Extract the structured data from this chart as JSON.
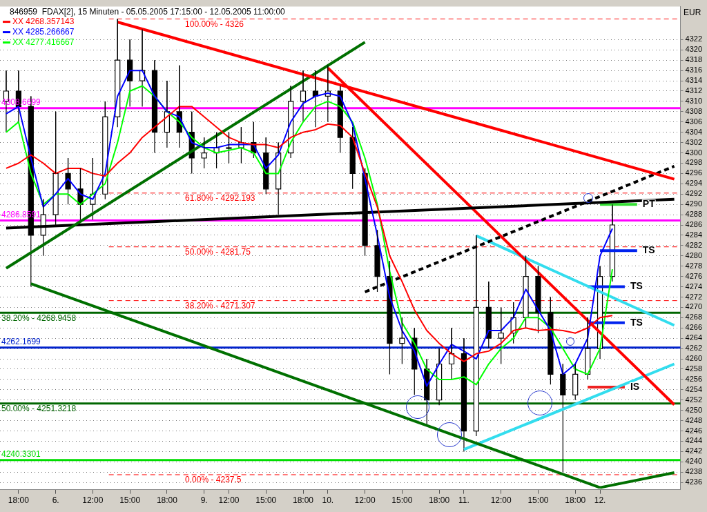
{
  "chart_data": {
    "type": "candlestick",
    "title": "846959  FDAX[2], 15 Minuten - 05.05.2005 17:15:00 - 12.05.2005 11:00:00",
    "ylabel": "EUR",
    "categories": [
      null,
      "18:00",
      null,
      null,
      "6.",
      null,
      null,
      "12:00",
      null,
      null,
      "15:00",
      null,
      null,
      "18:00",
      null,
      null,
      "9.",
      null,
      "12:00",
      null,
      null,
      "15:00",
      null,
      null,
      "18:00",
      null,
      "10.",
      null,
      null,
      "12:00",
      null,
      null,
      "15:00",
      null,
      null,
      "18:00",
      null,
      "11.",
      null,
      null,
      "12:00",
      null,
      null,
      "15:00",
      null,
      null,
      "18:00",
      null,
      "12.",
      null,
      null,
      null,
      null,
      null,
      null
    ],
    "ohlc": [
      [
        4310,
        4316,
        4304,
        4312
      ],
      [
        4312,
        4316,
        4306,
        4309
      ],
      [
        4309,
        4311,
        4274,
        4284
      ],
      [
        4284,
        4291,
        4280,
        4288
      ],
      [
        4288,
        4308,
        4286,
        4296
      ],
      [
        4296,
        4299,
        4290,
        4293
      ],
      [
        4293,
        4297,
        4287,
        4290
      ],
      [
        4290,
        4299,
        4287,
        4292
      ],
      [
        4292,
        4310,
        4291,
        4307
      ],
      [
        4307,
        4326,
        4305,
        4318
      ],
      [
        4318,
        4322,
        4309,
        4314
      ],
      [
        4314,
        4324,
        4309,
        4316
      ],
      [
        4316,
        4318,
        4300,
        4304
      ],
      [
        4304,
        4314,
        4301,
        4308
      ],
      [
        4308,
        4317,
        4301,
        4304
      ],
      [
        4304,
        4308,
        4296,
        4299
      ],
      [
        4299,
        4303,
        4297,
        4300
      ],
      [
        4300,
        4304,
        4297,
        4301
      ],
      [
        4301,
        4304,
        4298,
        4301
      ],
      [
        4301,
        4305,
        4298,
        4302
      ],
      [
        4302,
        4306,
        4299,
        4300
      ],
      [
        4300,
        4303,
        4292,
        4293
      ],
      [
        4293,
        4302,
        4288,
        4300
      ],
      [
        4300,
        4313,
        4299,
        4310
      ],
      [
        4310,
        4316,
        4306,
        4312
      ],
      [
        4312,
        4316,
        4305,
        4311
      ],
      [
        4311,
        4317,
        4306,
        4312
      ],
      [
        4312,
        4313,
        4300,
        4303
      ],
      [
        4303,
        4305,
        4293,
        4296
      ],
      [
        4296,
        4297,
        4280,
        4282
      ],
      [
        4282,
        4285,
        4273,
        4276
      ],
      [
        4276,
        4279,
        4257,
        4263
      ],
      [
        4263,
        4268,
        4259,
        4264
      ],
      [
        4264,
        4266,
        4253,
        4258
      ],
      [
        4258,
        4260,
        4247,
        4252
      ],
      [
        4252,
        4262,
        4251,
        4259
      ],
      [
        4259,
        4266,
        4256,
        4261
      ],
      [
        4261,
        4264,
        4242,
        4246
      ],
      [
        4246,
        4284,
        4245,
        4270
      ],
      [
        4270,
        4275,
        4262,
        4264
      ],
      [
        4264,
        4270,
        4259,
        4265
      ],
      [
        4265,
        4271,
        4263,
        4268
      ],
      [
        4268,
        4280,
        4266,
        4276
      ],
      [
        4276,
        4278,
        4265,
        4269
      ],
      [
        4269,
        4272,
        4255,
        4257
      ],
      [
        4257,
        4259,
        4238,
        4253
      ],
      [
        4253,
        4259,
        4252,
        4257
      ],
      [
        4257,
        4268,
        4256,
        4262
      ],
      [
        4262,
        4278,
        4260,
        4276
      ],
      [
        4276,
        4290,
        4275,
        4286
      ],
      null,
      null,
      null,
      null,
      null
    ],
    "series": [
      {
        "type": "line",
        "name": "XX 4268.357143",
        "color": "#ff0000",
        "values": [
          4297,
          4298,
          4299.6,
          4298,
          4296,
          4297,
          4297,
          4296,
          4295.5,
          4298,
          4300,
          4303,
          4305,
          4307,
          4309,
          4309,
          4307,
          4305,
          4303,
          4302,
          4301.6,
          4301.6,
          4301,
          4303,
          4304,
          4304.5,
          4305.6,
          4305.3,
          4303,
          4296,
          4289.5,
          4280,
          4275,
          4269.5,
          4265.5,
          4263,
          4261,
          4259.5,
          4261,
          4261.5,
          4263,
          4265.5,
          4266,
          4265.5,
          4265.7,
          4265.5,
          4265,
          4266,
          4268,
          4268.4,
          null,
          null,
          null,
          null,
          null
        ]
      },
      {
        "type": "line",
        "name": "XX 4285.266667",
        "color": "#0000ff",
        "values": [
          4307.6,
          4309,
          4299,
          4289.5,
          4292,
          4295,
          4292,
          4291,
          4296,
          4311,
          4316,
          4316,
          4311,
          4308,
          4307,
          4302,
          4301,
          4301,
          4301.6,
          4301.6,
          4301.6,
          4297,
          4299.6,
          4306,
          4309.6,
          4311,
          4311.6,
          4311,
          4305.6,
          4295,
          4284,
          4272,
          4265.5,
          4261.5,
          4254.7,
          4259,
          4262.8,
          4261.5,
          4260,
          4265.5,
          4265.5,
          4268,
          4273.5,
          4269.5,
          4265.5,
          4257,
          4259,
          4264,
          4280,
          4285.3,
          null,
          null,
          null,
          null,
          null
        ]
      },
      {
        "type": "line",
        "name": "XX 4277.416667",
        "color": "#00ff00",
        "values": [
          4304,
          4306,
          4296,
          4290,
          4292,
          4292,
          4290,
          4292,
          4294,
          4302,
          4312,
          4313,
          4311,
          4308,
          4306,
          4303,
          4301,
          4300,
          4300.5,
          4301,
          4300,
          4296,
          4296,
          4302,
          4306,
          4309,
          4310,
          4309,
          4306,
          4299,
          4290,
          4277,
          4267,
          4263,
          4258,
          4256,
          4256,
          4256.5,
          4255,
          4259,
          4262,
          4264,
          4268,
          4268,
          4266,
          4262,
          4258,
          4257,
          4262,
          4277.4,
          null,
          null,
          null,
          null,
          null
        ]
      },
      {
        "type": "line",
        "color": "#ff0000",
        "values": [
          null,
          null,
          null,
          null,
          null,
          null,
          null,
          null,
          null,
          4325.4,
          null,
          null,
          null,
          null,
          null,
          null,
          null,
          null,
          null,
          null,
          null,
          null,
          null,
          null,
          null,
          null,
          null,
          null,
          null,
          null,
          null,
          null,
          null,
          null,
          null,
          null,
          null,
          null,
          null,
          null,
          null,
          null,
          null,
          null,
          null,
          null,
          null,
          null,
          null,
          null,
          null,
          null,
          null,
          null,
          4294.9
        ]
      },
      {
        "type": "line",
        "color": "#007000",
        "values": [
          4277.6,
          null,
          null,
          null,
          null,
          null,
          null,
          null,
          null,
          null,
          null,
          null,
          null,
          null,
          null,
          null,
          null,
          null,
          null,
          null,
          null,
          null,
          null,
          null,
          null,
          null,
          null,
          null,
          null,
          4321.5,
          null,
          null,
          null,
          null,
          null,
          null,
          null,
          null,
          null,
          null,
          null,
          null,
          null,
          null,
          null,
          null,
          null,
          null,
          null,
          null,
          null,
          null,
          null,
          null,
          null
        ]
      },
      {
        "type": "line",
        "color": "#007000",
        "values": [
          null,
          null,
          4274.6,
          null,
          null,
          null,
          null,
          null,
          null,
          null,
          null,
          null,
          null,
          null,
          null,
          null,
          null,
          null,
          null,
          null,
          null,
          null,
          null,
          null,
          null,
          null,
          null,
          null,
          null,
          null,
          null,
          null,
          null,
          null,
          null,
          null,
          null,
          null,
          null,
          null,
          null,
          null,
          null,
          null,
          null,
          null,
          null,
          null,
          4235.0,
          null,
          null,
          null,
          null,
          null,
          null
        ]
      },
      {
        "type": "line",
        "color": "#007000",
        "values": [
          null,
          null,
          null,
          null,
          null,
          null,
          null,
          null,
          null,
          null,
          null,
          null,
          null,
          null,
          null,
          null,
          null,
          null,
          null,
          null,
          null,
          null,
          null,
          null,
          null,
          null,
          null,
          null,
          null,
          null,
          null,
          null,
          null,
          null,
          null,
          null,
          null,
          null,
          null,
          null,
          null,
          null,
          null,
          null,
          null,
          null,
          null,
          null,
          4235.0,
          null,
          null,
          null,
          null,
          null,
          4237.9
        ]
      },
      {
        "type": "line",
        "color": "#000000",
        "values": [
          4285.4,
          null,
          null,
          null,
          null,
          null,
          null,
          null,
          null,
          null,
          null,
          null,
          null,
          null,
          null,
          null,
          null,
          null,
          null,
          null,
          null,
          null,
          null,
          null,
          null,
          null,
          null,
          null,
          null,
          null,
          null,
          null,
          null,
          null,
          null,
          null,
          null,
          null,
          null,
          null,
          null,
          null,
          null,
          null,
          null,
          null,
          null,
          null,
          null,
          null,
          null,
          null,
          null,
          null,
          4291.0
        ]
      },
      {
        "type": "line",
        "color": "#000000",
        "line_style": "dashed",
        "values": [
          null,
          null,
          null,
          null,
          null,
          null,
          null,
          null,
          null,
          null,
          null,
          null,
          null,
          null,
          null,
          null,
          null,
          null,
          null,
          null,
          null,
          null,
          null,
          null,
          null,
          null,
          null,
          null,
          null,
          4273.0,
          null,
          null,
          null,
          null,
          null,
          null,
          null,
          null,
          null,
          null,
          null,
          null,
          null,
          null,
          null,
          null,
          null,
          null,
          null,
          null,
          null,
          null,
          null,
          null,
          4297.4
        ]
      },
      {
        "type": "line",
        "color": "#ff0000",
        "values": [
          null,
          null,
          null,
          null,
          null,
          null,
          null,
          null,
          null,
          null,
          null,
          null,
          null,
          null,
          null,
          null,
          null,
          null,
          null,
          null,
          null,
          null,
          null,
          null,
          null,
          null,
          4316.5,
          null,
          null,
          null,
          null,
          null,
          null,
          null,
          null,
          null,
          null,
          null,
          null,
          null,
          null,
          null,
          null,
          null,
          null,
          null,
          null,
          null,
          null,
          null,
          null,
          null,
          null,
          null,
          4251.1
        ]
      },
      {
        "type": "line",
        "color": "#33ddee",
        "values": [
          null,
          null,
          null,
          null,
          null,
          null,
          null,
          null,
          null,
          null,
          null,
          null,
          null,
          null,
          null,
          null,
          null,
          null,
          null,
          null,
          null,
          null,
          null,
          null,
          null,
          null,
          null,
          null,
          null,
          null,
          null,
          null,
          null,
          null,
          null,
          null,
          null,
          null,
          4283.9,
          null,
          null,
          null,
          null,
          null,
          null,
          null,
          null,
          null,
          null,
          null,
          null,
          null,
          null,
          null,
          4266.5
        ]
      },
      {
        "type": "line",
        "color": "#33ddee",
        "values": [
          null,
          null,
          null,
          null,
          null,
          null,
          null,
          null,
          null,
          null,
          null,
          null,
          null,
          null,
          null,
          null,
          null,
          null,
          null,
          null,
          null,
          null,
          null,
          null,
          null,
          null,
          null,
          null,
          null,
          null,
          null,
          null,
          null,
          null,
          null,
          null,
          null,
          4242.4,
          null,
          null,
          null,
          null,
          null,
          null,
          null,
          null,
          null,
          null,
          null,
          null,
          null,
          null,
          null,
          null,
          4259.0
        ]
      },
      {
        "type": "line",
        "name": "PT",
        "color": "#33dd33",
        "values": [
          null,
          null,
          null,
          null,
          null,
          null,
          null,
          null,
          null,
          null,
          null,
          null,
          null,
          null,
          null,
          null,
          null,
          null,
          null,
          null,
          null,
          null,
          null,
          null,
          null,
          null,
          null,
          null,
          null,
          null,
          null,
          null,
          null,
          null,
          null,
          null,
          null,
          null,
          null,
          null,
          null,
          null,
          null,
          null,
          null,
          null,
          null,
          null,
          4290,
          4290,
          4290,
          4290,
          null,
          null,
          null
        ]
      },
      {
        "type": "line",
        "name": "TS",
        "color": "#0022ee",
        "values": [
          null,
          null,
          null,
          null,
          null,
          null,
          null,
          null,
          null,
          null,
          null,
          null,
          null,
          null,
          null,
          null,
          null,
          null,
          null,
          null,
          null,
          null,
          null,
          null,
          null,
          null,
          null,
          null,
          null,
          null,
          null,
          null,
          null,
          null,
          null,
          null,
          null,
          null,
          null,
          null,
          null,
          null,
          null,
          null,
          null,
          null,
          null,
          null,
          4281,
          4281,
          4281,
          4281,
          null,
          null,
          null
        ]
      },
      {
        "type": "line",
        "name": "TS",
        "color": "#0022ee",
        "values": [
          null,
          null,
          null,
          null,
          null,
          null,
          null,
          null,
          null,
          null,
          null,
          null,
          null,
          null,
          null,
          null,
          null,
          null,
          null,
          null,
          null,
          null,
          null,
          null,
          null,
          null,
          null,
          null,
          null,
          null,
          null,
          null,
          null,
          null,
          null,
          null,
          null,
          null,
          null,
          null,
          null,
          null,
          null,
          null,
          null,
          null,
          null,
          4274,
          4274,
          4274,
          4274,
          null,
          null,
          null,
          null
        ]
      },
      {
        "type": "line",
        "name": "TS",
        "color": "#0022ee",
        "values": [
          null,
          null,
          null,
          null,
          null,
          null,
          null,
          null,
          null,
          null,
          null,
          null,
          null,
          null,
          null,
          null,
          null,
          null,
          null,
          null,
          null,
          null,
          null,
          null,
          null,
          null,
          null,
          null,
          null,
          null,
          null,
          null,
          null,
          null,
          null,
          null,
          null,
          null,
          null,
          null,
          null,
          null,
          null,
          null,
          null,
          null,
          null,
          4267,
          4267,
          4267,
          4267,
          null,
          null,
          null,
          null
        ]
      },
      {
        "type": "line",
        "name": "IS",
        "color": "#ee2222",
        "values": [
          null,
          null,
          null,
          null,
          null,
          null,
          null,
          null,
          null,
          null,
          null,
          null,
          null,
          null,
          null,
          null,
          null,
          null,
          null,
          null,
          null,
          null,
          null,
          null,
          null,
          null,
          null,
          null,
          null,
          null,
          null,
          null,
          null,
          null,
          null,
          null,
          null,
          null,
          null,
          null,
          null,
          null,
          null,
          null,
          null,
          null,
          null,
          4254.5,
          4254.5,
          4254.5,
          4254.5,
          null,
          null,
          null,
          null
        ]
      }
    ],
    "ref_lines": [
      {
        "axis": "y",
        "value": 4326,
        "color": "#ff0000",
        "line_style": "dashed"
      },
      {
        "axis": "y",
        "value": 4308.6699,
        "label": "4308.6699",
        "color": "#ff00ff"
      },
      {
        "axis": "y",
        "value": 4292.193,
        "color": "#ff0000",
        "line_style": "dashed"
      },
      {
        "axis": "y",
        "value": 4286.8591,
        "label": "4286.8591",
        "color": "#ff00ff"
      },
      {
        "axis": "y",
        "value": 4281.75,
        "color": "#ff0000",
        "line_style": "dashed"
      },
      {
        "axis": "y",
        "value": 4271.307,
        "color": "#ff0000",
        "line_style": "dashed"
      },
      {
        "axis": "y",
        "value": 4268.9458,
        "color": "#006600"
      },
      {
        "axis": "y",
        "value": 4262.1699,
        "label": "4262.1699",
        "color": "#0022cc"
      },
      {
        "axis": "y",
        "value": 4251.3218,
        "color": "#006600"
      },
      {
        "axis": "y",
        "value": 4240.3301,
        "label": "4240.3301",
        "color": "#00dd00"
      },
      {
        "axis": "y",
        "value": 4237.5,
        "color": "#ff0000",
        "line_style": "dashed"
      }
    ],
    "annotations": [
      {
        "text": "100.00% - 4326",
        "y": 4326
      },
      {
        "text": "61.80% - 4292.193",
        "y": 4292.193
      },
      {
        "text": "50.00% - 4281.75",
        "y": 4281.75
      },
      {
        "text": "38.20% - 4271.307",
        "y": 4271.307
      },
      {
        "text": "38.20% - 4268.9458",
        "y": 4268.9458
      },
      {
        "text": "50.00% - 4251.3218",
        "y": 4251.3218
      },
      {
        "text": "0.00% - 4237.5",
        "y": 4237.5
      }
    ],
    "ylim": [
      4234.6,
      4328.4
    ],
    "yticks": [
      4236,
      4238,
      4240,
      4242,
      4244,
      4246,
      4248,
      4250,
      4252,
      4254,
      4256,
      4258,
      4260,
      4262,
      4264,
      4266,
      4268,
      4270,
      4272,
      4274,
      4276,
      4278,
      4280,
      4282,
      4284,
      4286,
      4288,
      4290,
      4292,
      4294,
      4296,
      4298,
      4300,
      4302,
      4304,
      4306,
      4308,
      4310,
      4312,
      4314,
      4316,
      4318,
      4320,
      4322
    ],
    "grid": "y",
    "legend": "top left"
  }
}
